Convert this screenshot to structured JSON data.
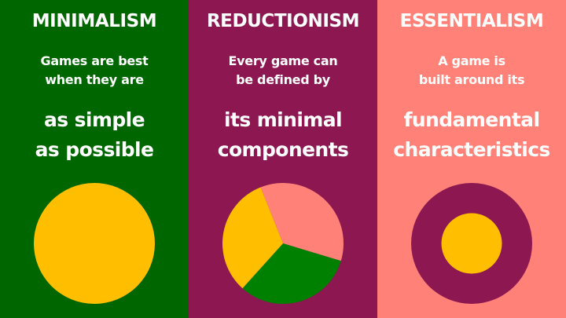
{
  "colors": {
    "green": "#006600",
    "magenta": "#8C1751",
    "salmon": "#FF8177",
    "yellow": "#FFBF00",
    "mid_green": "#008000",
    "text": "#FFFFFF"
  },
  "panels": [
    {
      "title": "MINIMALISM",
      "intro": [
        "Games are best",
        "when they are"
      ],
      "emphasis": [
        "as simple",
        "as possible"
      ],
      "graphic": "full-circle-icon"
    },
    {
      "title": "REDUCTIONISM",
      "intro": [
        "Every game can",
        "be defined by"
      ],
      "emphasis": [
        "its minimal",
        "components"
      ],
      "graphic": "pie-chart-icon",
      "segments": [
        {
          "color": "salmon",
          "fraction": 0.357
        },
        {
          "color": "mid_green",
          "fraction": 0.32
        },
        {
          "color": "yellow",
          "fraction": 0.323
        }
      ]
    },
    {
      "title": "ESSENTIALISM",
      "intro": [
        "A game is",
        "built around its"
      ],
      "emphasis": [
        "fundamental",
        "characteristics"
      ],
      "graphic": "concentric-circle-icon",
      "core_fraction": 0.5
    }
  ]
}
